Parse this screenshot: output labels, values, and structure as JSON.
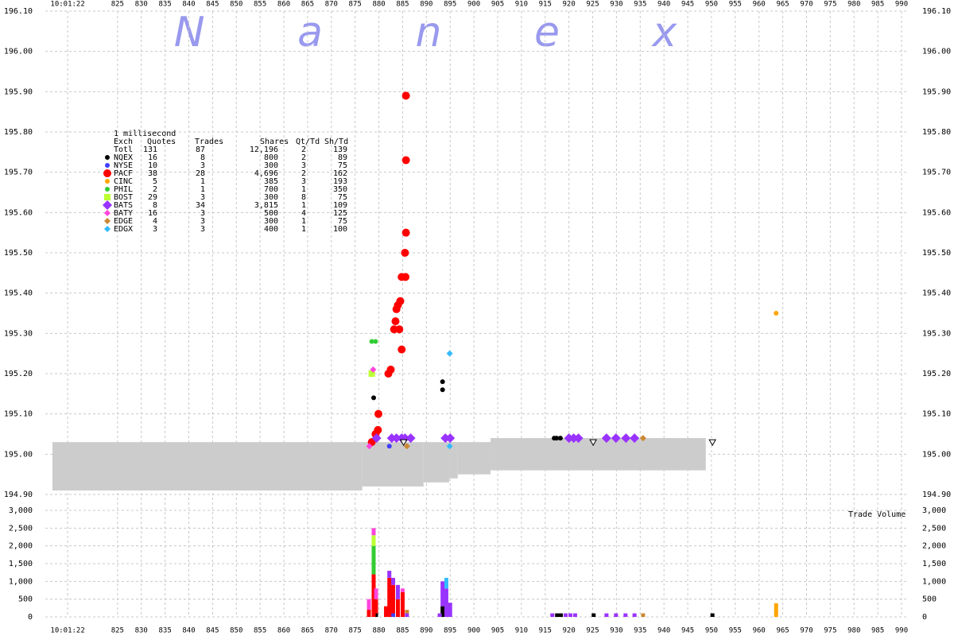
{
  "chart_data": {
    "type": "tick",
    "title": "N a n e x",
    "volume_label": "Trade Volume",
    "xlim": [
      809.8,
      991.5
    ],
    "xticks": [
      {
        "value": 814.5,
        "label": "10:01:22"
      },
      825,
      830,
      835,
      840,
      845,
      850,
      855,
      860,
      865,
      870,
      875,
      880,
      885,
      890,
      895,
      900,
      905,
      910,
      915,
      920,
      925,
      930,
      935,
      940,
      945,
      950,
      955,
      960,
      965,
      970,
      975,
      980,
      985,
      990
    ],
    "ylim": [
      194.9,
      196.1
    ],
    "yticks": [
      {
        "value": 194.9,
        "label": "194.90"
      },
      {
        "value": 195.0,
        "label": "195.00"
      },
      {
        "value": 195.1,
        "label": "195.10"
      },
      {
        "value": 195.2,
        "label": "195.20"
      },
      {
        "value": 195.3,
        "label": "195.30"
      },
      {
        "value": 195.4,
        "label": "195.40"
      },
      {
        "value": 195.5,
        "label": "195.50"
      },
      {
        "value": 195.6,
        "label": "195.60"
      },
      {
        "value": 195.7,
        "label": "195.70"
      },
      {
        "value": 195.8,
        "label": "195.80"
      },
      {
        "value": 195.9,
        "label": "195.90"
      },
      {
        "value": 196.0,
        "label": "196.00"
      },
      {
        "value": 196.1,
        "label": "196.10"
      }
    ],
    "y2lim": [
      0,
      3000
    ],
    "y2ticks": [
      0,
      500,
      {
        "value": 1000,
        "label": "1,000"
      },
      {
        "value": 1500,
        "label": "1,500"
      },
      {
        "value": 2000,
        "label": "2,000"
      },
      {
        "value": 2500,
        "label": "2,500"
      },
      {
        "value": 3000,
        "label": "3,000"
      }
    ],
    "grid": true,
    "nbbo": {
      "color": "#cccccc",
      "segments": [
        {
          "x": [
            811.3,
            876.5
          ],
          "bid": 194.91,
          "ask": 195.03
        },
        {
          "x": [
            876.5,
            889.4
          ],
          "bid": 194.92,
          "ask": 195.03
        },
        {
          "x": [
            889.4,
            894.8
          ],
          "bid": 194.93,
          "ask": 195.03
        },
        {
          "x": [
            894.8,
            896.6
          ],
          "bid": 194.94,
          "ask": 195.03
        },
        {
          "x": [
            896.6,
            903.5
          ],
          "bid": 194.95,
          "ask": 195.03
        },
        {
          "x": [
            903.5,
            948.8
          ],
          "bid": 194.96,
          "ask": 195.04
        }
      ]
    },
    "legend": {
      "title": "1 millisecond",
      "columns": [
        "Exch",
        "Quotes",
        "Trades",
        "Shares",
        "Qt/Td",
        "Sh/Td"
      ],
      "total": [
        "Totl",
        131,
        87,
        "12,196",
        2,
        139
      ]
    },
    "series": [
      {
        "name": "NQEX",
        "color": "#000000",
        "marker": "circle",
        "stats": [
          16,
          8,
          800,
          2,
          89
        ],
        "x": [
          878.9,
          893.4,
          893.4,
          916.9,
          917.4,
          918.2
        ],
        "y": [
          195.14,
          195.18,
          195.16,
          195.04,
          195.04,
          195.04
        ],
        "vol_x": [
          879.4,
          893.4,
          917.5,
          918.3,
          925.2,
          950.2
        ],
        "vol": [
          100,
          300,
          100,
          100,
          100,
          100
        ]
      },
      {
        "name": "NYSE",
        "color": "#3f3fff",
        "marker": "circle",
        "stats": [
          10,
          3,
          300,
          3,
          75
        ],
        "x": [
          882.2,
          886.3
        ],
        "y": [
          195.02,
          195.04
        ],
        "vol_x": [
          883
        ],
        "vol": [
          100
        ]
      },
      {
        "name": "PACF",
        "color": "#ff0000",
        "marker": "circle-large",
        "stats": [
          38,
          28,
          "4,696",
          2,
          162
        ],
        "x": [
          878.5,
          879.3,
          879.8,
          879.9,
          882.0,
          882.5,
          883.2,
          883.5,
          883.7,
          884.0,
          884.5,
          884.8,
          885.6,
          884.8,
          884.3,
          885.5,
          885.7,
          885.7,
          885.7
        ],
        "y": [
          195.03,
          195.05,
          195.06,
          195.1,
          195.2,
          195.21,
          195.31,
          195.33,
          195.36,
          195.37,
          195.38,
          195.44,
          195.44,
          195.26,
          195.31,
          195.5,
          195.55,
          195.73,
          195.89
        ],
        "vol_x": [
          877.9,
          878.9,
          879.4,
          881.5,
          882.2,
          883,
          884,
          885
        ],
        "vol": [
          200,
          1200,
          400,
          300,
          1100,
          800,
          500,
          700
        ]
      },
      {
        "name": "CINC",
        "color": "#ffa500",
        "marker": "circle",
        "stats": [
          5,
          1,
          385,
          3,
          193
        ],
        "x": [
          963.6
        ],
        "y": [
          195.35
        ],
        "vol_x": [
          963.6
        ],
        "vol": [
          385
        ]
      },
      {
        "name": "PHIL",
        "color": "#33cc33",
        "marker": "circle",
        "stats": [
          2,
          1,
          700,
          1,
          350
        ],
        "x": [
          878.5,
          879.3
        ],
        "y": [
          195.28,
          195.28
        ],
        "vol_x": [
          878.9
        ],
        "vol": [
          800
        ]
      },
      {
        "name": "BOST",
        "color": "#bbff33",
        "marker": "square",
        "stats": [
          29,
          3,
          300,
          8,
          75
        ],
        "x": [
          878.5
        ],
        "y": [
          195.2
        ],
        "vol_x": [
          878.9
        ],
        "vol": [
          300
        ]
      },
      {
        "name": "BATS",
        "color": "#9933ff",
        "marker": "diamond-large",
        "stats": [
          8,
          34,
          "3,815",
          1,
          109
        ],
        "x": [
          879.5,
          882.7,
          883.7,
          884.8,
          885.5,
          886.7,
          894.0,
          895.0,
          920.0,
          921.0,
          922.0,
          927.9,
          929.9,
          932.0,
          933.8
        ],
        "y": [
          195.04,
          195.04,
          195.04,
          195.04,
          195.04,
          195.04,
          195.04,
          195.04,
          195.04,
          195.04,
          195.04,
          195.04,
          195.04,
          195.04,
          195.04
        ],
        "vol_x": [
          882.2,
          883,
          884,
          885.9,
          892.8,
          893.4,
          894.2,
          895,
          916.5,
          919.3,
          920.3,
          921.3,
          927.9,
          929.9,
          931.9,
          933.8
        ],
        "vol": [
          200,
          200,
          400,
          100,
          100,
          700,
          800,
          400,
          100,
          100,
          100,
          100,
          100,
          100,
          100,
          100
        ]
      },
      {
        "name": "BATY",
        "color": "#ff44dd",
        "marker": "diamond",
        "stats": [
          16,
          3,
          500,
          4,
          125
        ],
        "x": [
          878.0,
          878.8
        ],
        "y": [
          195.02,
          195.21
        ],
        "vol_x": [
          877.9,
          878.9,
          879.4,
          885
        ],
        "vol": [
          300,
          200,
          300,
          100
        ]
      },
      {
        "name": "EDGE",
        "color": "#cc8833",
        "marker": "diamond",
        "stats": [
          4,
          3,
          300,
          1,
          75
        ],
        "x": [
          885.9,
          935.6
        ],
        "y": [
          195.02,
          195.04
        ],
        "vol_x": [
          885.9,
          935.6
        ],
        "vol": [
          100,
          100
        ]
      },
      {
        "name": "EDGX",
        "color": "#33bbff",
        "marker": "diamond",
        "stats": [
          3,
          3,
          400,
          1,
          100
        ],
        "x": [
          894.9,
          894.9
        ],
        "y": [
          195.25,
          195.02
        ],
        "vol_x": [
          894.2
        ],
        "vol": [
          300
        ]
      },
      {
        "color": "#ffffff",
        "marker": "triangle-open",
        "x": [
          885.2,
          925.1,
          950.2
        ],
        "y": [
          195.03,
          195.03,
          195.03
        ]
      }
    ]
  }
}
